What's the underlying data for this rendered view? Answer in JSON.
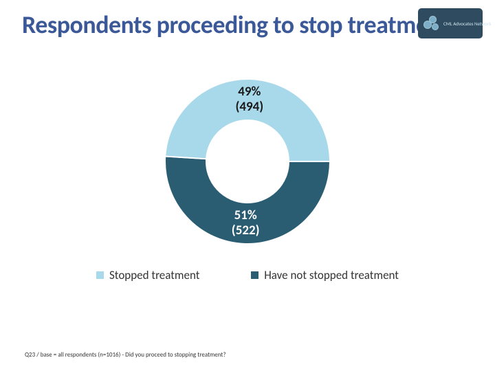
{
  "title": "Respondents proceeding to stop treatment",
  "logo": {
    "text": "CML Advocates Network"
  },
  "chart": {
    "type": "donut",
    "background_color": "#ffffff",
    "inner_radius_ratio": 0.5,
    "outer_radius": 120,
    "inner_hole_color": "#ffffff",
    "start_angle_deg": 90,
    "direction": "clockwise",
    "slices": [
      {
        "key": "have_not_stopped",
        "value": 51,
        "count": 522,
        "color": "#2b5d72",
        "label": "51%\n(522)",
        "label_side": "left",
        "label_color": "#ffffff"
      },
      {
        "key": "stopped",
        "value": 49,
        "count": 494,
        "color": "#a8d9ea",
        "label": "49%\n(494)",
        "label_side": "right",
        "label_color": "#1a1a1a"
      }
    ],
    "slice_border_color": "#ffffff",
    "slice_border_width": 2,
    "label_fontsize": 19,
    "label_fontweight": 700
  },
  "legend": {
    "items": [
      {
        "swatch_color": "#a8d9ea",
        "text": "Stopped treatment"
      },
      {
        "swatch_color": "#2b5d72",
        "text": "Have not stopped treatment"
      }
    ],
    "fontsize": 17,
    "text_color": "#333333"
  },
  "footer": "Q23 / base = all respondents (n=1016) - Did you proceed to stopping treatment?"
}
